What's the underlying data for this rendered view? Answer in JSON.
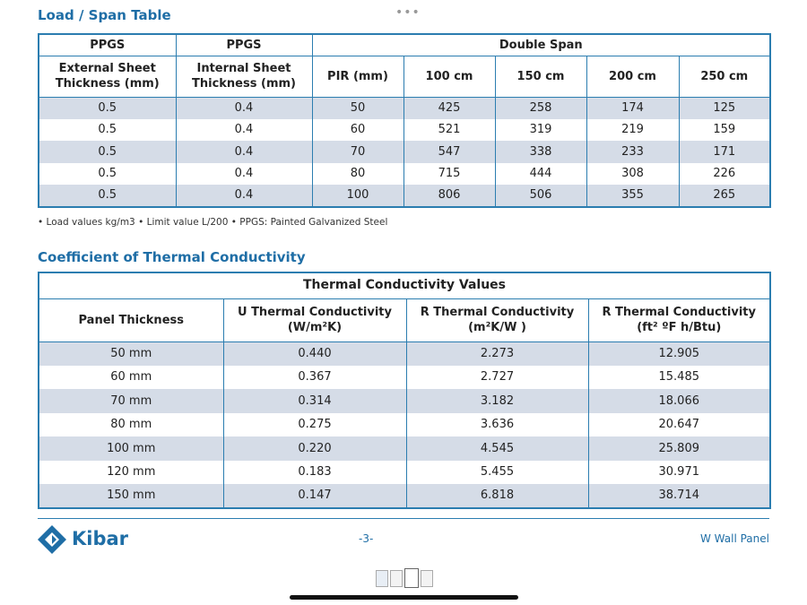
{
  "load_span": {
    "title": "Load / Span Table",
    "header_row1": [
      "PPGS",
      "PPGS",
      "Double Span"
    ],
    "header_row2": [
      [
        "External Sheet",
        "Thickness (mm)"
      ],
      [
        "Internal Sheet",
        "Thickness (mm)"
      ],
      [
        "PIR (mm)"
      ],
      [
        "100 cm"
      ],
      [
        "150 cm"
      ],
      [
        "200 cm"
      ],
      [
        "250 cm"
      ]
    ],
    "rows": [
      [
        "0.5",
        "0.4",
        "50",
        "425",
        "258",
        "174",
        "125"
      ],
      [
        "0.5",
        "0.4",
        "60",
        "521",
        "319",
        "219",
        "159"
      ],
      [
        "0.5",
        "0.4",
        "70",
        "547",
        "338",
        "233",
        "171"
      ],
      [
        "0.5",
        "0.4",
        "80",
        "715",
        "444",
        "308",
        "226"
      ],
      [
        "0.5",
        "0.4",
        "100",
        "806",
        "506",
        "355",
        "265"
      ]
    ],
    "note": "• Load values kg/m3 • Limit value L/200 • PPGS: Painted Galvanized Steel"
  },
  "thermal": {
    "title": "Coefficient of Thermal Conductivity",
    "caption": "Thermal Conductivity Values",
    "headers": [
      [
        "Panel Thickness"
      ],
      [
        "U Thermal Conductivity",
        "(W/m²K)"
      ],
      [
        "R Thermal Conductivity",
        "(m²K/W )"
      ],
      [
        "R Thermal Conductivity",
        "(ft² ºF h/Btu)"
      ]
    ],
    "rows": [
      [
        "50 mm",
        "0.440",
        "2.273",
        "12.905"
      ],
      [
        "60 mm",
        "0.367",
        "2.727",
        "15.485"
      ],
      [
        "70 mm",
        "0.314",
        "3.182",
        "18.066"
      ],
      [
        "80 mm",
        "0.275",
        "3.636",
        "20.647"
      ],
      [
        "100 mm",
        "0.220",
        "4.545",
        "25.809"
      ],
      [
        "120 mm",
        "0.183",
        "5.455",
        "30.971"
      ],
      [
        "150 mm",
        "0.147",
        "6.818",
        "38.714"
      ]
    ]
  },
  "footer": {
    "brand": "Kibar",
    "page": "-3-",
    "product": "W Wall Panel"
  }
}
